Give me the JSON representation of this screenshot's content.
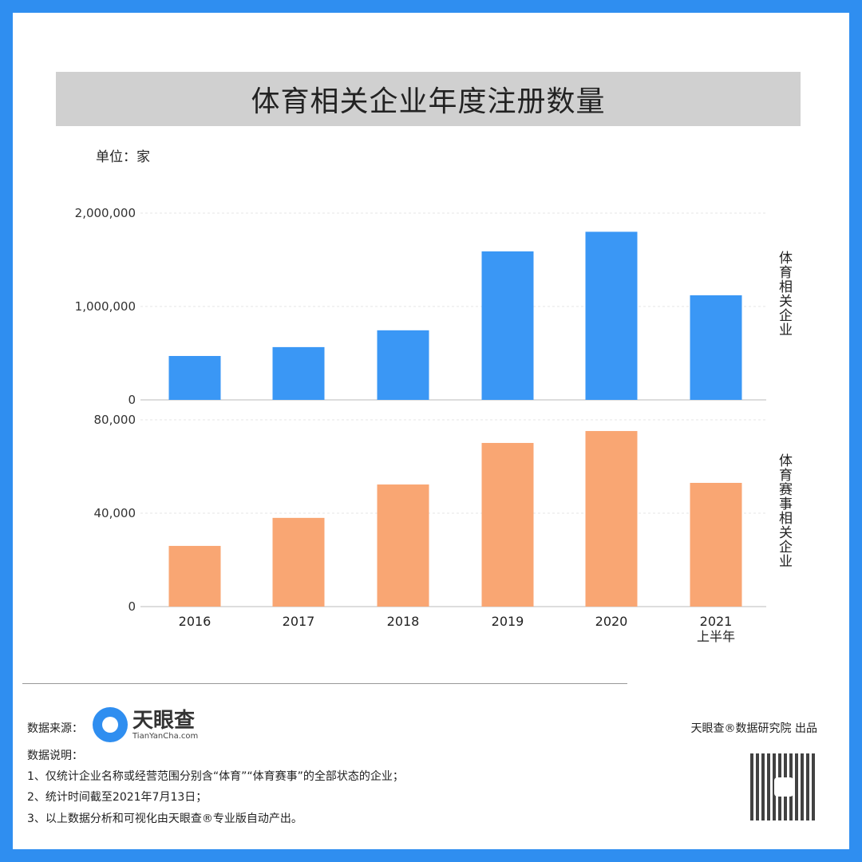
{
  "header": {
    "title": "体育相关企业年度注册数量",
    "unit": "单位：家"
  },
  "colors": {
    "border": "#2f8ef0",
    "bar_top": "#3a97f5",
    "bar_bottom": "#f9a673",
    "title_band": "#d0d0d0"
  },
  "chart_data": [
    {
      "type": "bar",
      "categories": [
        "2016",
        "2017",
        "2018",
        "2019",
        "2020",
        "2021\n上半年"
      ],
      "series": [
        {
          "name": "体育相关企业",
          "values": [
            470000,
            565000,
            745000,
            1590000,
            1800000,
            1120000
          ]
        }
      ],
      "yticks": [
        "0",
        "1,000,000",
        "2,000,000"
      ],
      "ylim": [
        0,
        2000000
      ],
      "grid": true,
      "ylabel": "体育相关企业"
    },
    {
      "type": "bar",
      "categories": [
        "2016",
        "2017",
        "2018",
        "2019",
        "2020",
        "2021\n上半年"
      ],
      "series": [
        {
          "name": "体育赛事相关企业",
          "values": [
            26000,
            38000,
            52300,
            70100,
            75200,
            53000
          ]
        }
      ],
      "yticks": [
        "0",
        "40,000",
        "80,000"
      ],
      "ylim": [
        0,
        80000
      ],
      "grid": true,
      "ylabel": "体育赛事相关企业"
    }
  ],
  "xlabels": [
    "2016",
    "2017",
    "2018",
    "2019",
    "2020",
    "2021"
  ],
  "xlabel_sub": "上半年",
  "footer": {
    "source_label": "数据来源：",
    "logo_text": "天眼查",
    "logo_sub": "TianYanCha.com",
    "producer": "天眼查®数据研究院 出品",
    "notes_title": "数据说明：",
    "notes": [
      "1、仅统计企业名称或经营范围分别含“体育”“体育赛事”的全部状态的企业；",
      "2、统计时间截至2021年7月13日；",
      "3、以上数据分析和可视化由天眼查®专业版自动产出。"
    ]
  },
  "watermark": "天眼查 TianYanCha.com"
}
